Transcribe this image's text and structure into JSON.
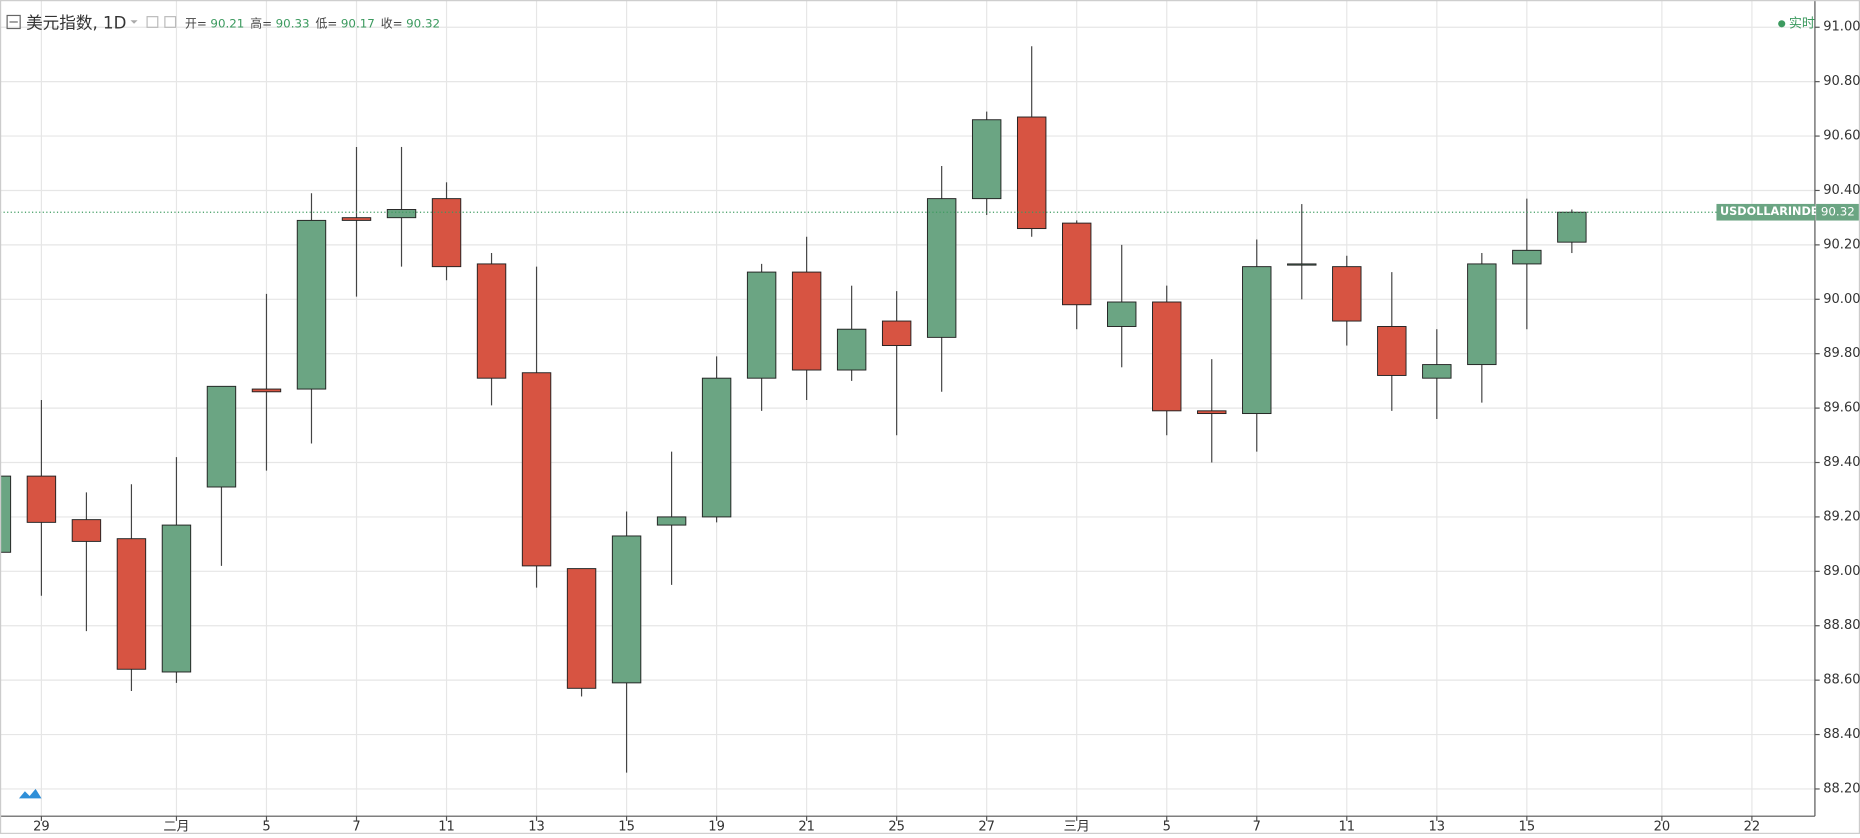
{
  "chart_data": {
    "type": "candlestick",
    "title": "美元指数, 1D",
    "header": {
      "open_label": "开=",
      "open": 90.21,
      "high_label": "高=",
      "high": 90.33,
      "low_label": "低=",
      "low": 90.17,
      "close_label": "收=",
      "close": 90.32
    },
    "status": "实时",
    "symbol": "USDOLLARINDEX",
    "x": [
      0,
      1,
      2,
      3,
      4,
      5,
      6,
      7,
      8,
      9,
      10,
      11,
      12,
      13,
      14,
      15,
      16,
      17,
      18,
      19,
      20,
      21,
      22,
      23,
      24,
      25,
      26,
      27,
      28,
      29,
      30,
      31,
      32,
      33,
      34,
      35
    ],
    "open": [
      89.07,
      89.35,
      89.19,
      89.12,
      88.63,
      89.31,
      89.67,
      89.67,
      90.3,
      90.3,
      90.37,
      90.13,
      89.73,
      89.01,
      88.59,
      89.17,
      89.2,
      89.71,
      90.1,
      89.74,
      89.92,
      89.86,
      90.37,
      90.67,
      90.28,
      89.9,
      89.99,
      89.59,
      89.58,
      90.13,
      90.12,
      89.9,
      89.71,
      89.76,
      90.13,
      90.21
    ],
    "high": [
      89.36,
      89.63,
      89.29,
      89.32,
      89.42,
      89.68,
      90.02,
      90.39,
      90.56,
      90.56,
      90.43,
      90.17,
      90.12,
      89.01,
      89.22,
      89.44,
      89.79,
      90.13,
      90.23,
      90.05,
      90.03,
      90.49,
      90.69,
      90.93,
      90.29,
      90.2,
      90.05,
      89.78,
      90.22,
      90.35,
      90.16,
      90.1,
      89.89,
      90.17,
      90.37,
      90.33
    ],
    "low": [
      89.06,
      88.91,
      88.78,
      88.56,
      88.59,
      89.02,
      89.37,
      89.47,
      90.01,
      90.12,
      90.07,
      89.61,
      88.94,
      88.54,
      88.26,
      88.95,
      89.18,
      89.59,
      89.63,
      89.7,
      89.5,
      89.66,
      90.31,
      90.23,
      89.89,
      89.75,
      89.5,
      89.4,
      89.44,
      90.0,
      89.83,
      89.59,
      89.56,
      89.62,
      89.89,
      90.17
    ],
    "close": [
      89.35,
      89.18,
      89.11,
      88.64,
      89.17,
      89.68,
      89.66,
      90.29,
      90.29,
      90.33,
      90.12,
      89.71,
      89.02,
      88.57,
      89.13,
      89.2,
      89.71,
      90.1,
      89.74,
      89.89,
      89.83,
      90.37,
      90.66,
      90.26,
      89.98,
      89.99,
      89.59,
      89.58,
      90.12,
      90.13,
      89.92,
      89.72,
      89.76,
      90.13,
      90.18,
      90.32
    ],
    "up_color": "#6ba583",
    "down_color": "#d75442",
    "grid": true,
    "xlim": [
      0.08,
      40.4
    ],
    "xticks": [
      {
        "value": 1,
        "label": "29"
      },
      {
        "value": 4,
        "label": "二月"
      },
      {
        "value": 6,
        "label": "5"
      },
      {
        "value": 8,
        "label": "7"
      },
      {
        "value": 10,
        "label": "11"
      },
      {
        "value": 12,
        "label": "13"
      },
      {
        "value": 14,
        "label": "15"
      },
      {
        "value": 16,
        "label": "19"
      },
      {
        "value": 18,
        "label": "21"
      },
      {
        "value": 20,
        "label": "25"
      },
      {
        "value": 22,
        "label": "27"
      },
      {
        "value": 24,
        "label": "三月"
      },
      {
        "value": 26,
        "label": "5"
      },
      {
        "value": 28,
        "label": "7"
      },
      {
        "value": 30,
        "label": "11"
      },
      {
        "value": 32,
        "label": "13"
      },
      {
        "value": 34,
        "label": "15"
      },
      {
        "value": 37,
        "label": "20"
      },
      {
        "value": 39,
        "label": "22"
      }
    ],
    "ylim": [
      88.1,
      91.1
    ],
    "yticks": [
      {
        "value": 88.2,
        "label": "88.20"
      },
      {
        "value": 88.4,
        "label": "88.40"
      },
      {
        "value": 88.6,
        "label": "88.60"
      },
      {
        "value": 88.8,
        "label": "88.80"
      },
      {
        "value": 89.0,
        "label": "89.00"
      },
      {
        "value": 89.2,
        "label": "89.20"
      },
      {
        "value": 89.4,
        "label": "89.40"
      },
      {
        "value": 89.6,
        "label": "89.60"
      },
      {
        "value": 89.8,
        "label": "89.80"
      },
      {
        "value": 90.0,
        "label": "90.00"
      },
      {
        "value": 90.2,
        "label": "90.20"
      },
      {
        "value": 90.4,
        "label": "90.40"
      },
      {
        "value": 90.6,
        "label": "90.60"
      },
      {
        "value": 90.8,
        "label": "90.80"
      },
      {
        "value": 91.0,
        "label": "91.00"
      }
    ]
  }
}
